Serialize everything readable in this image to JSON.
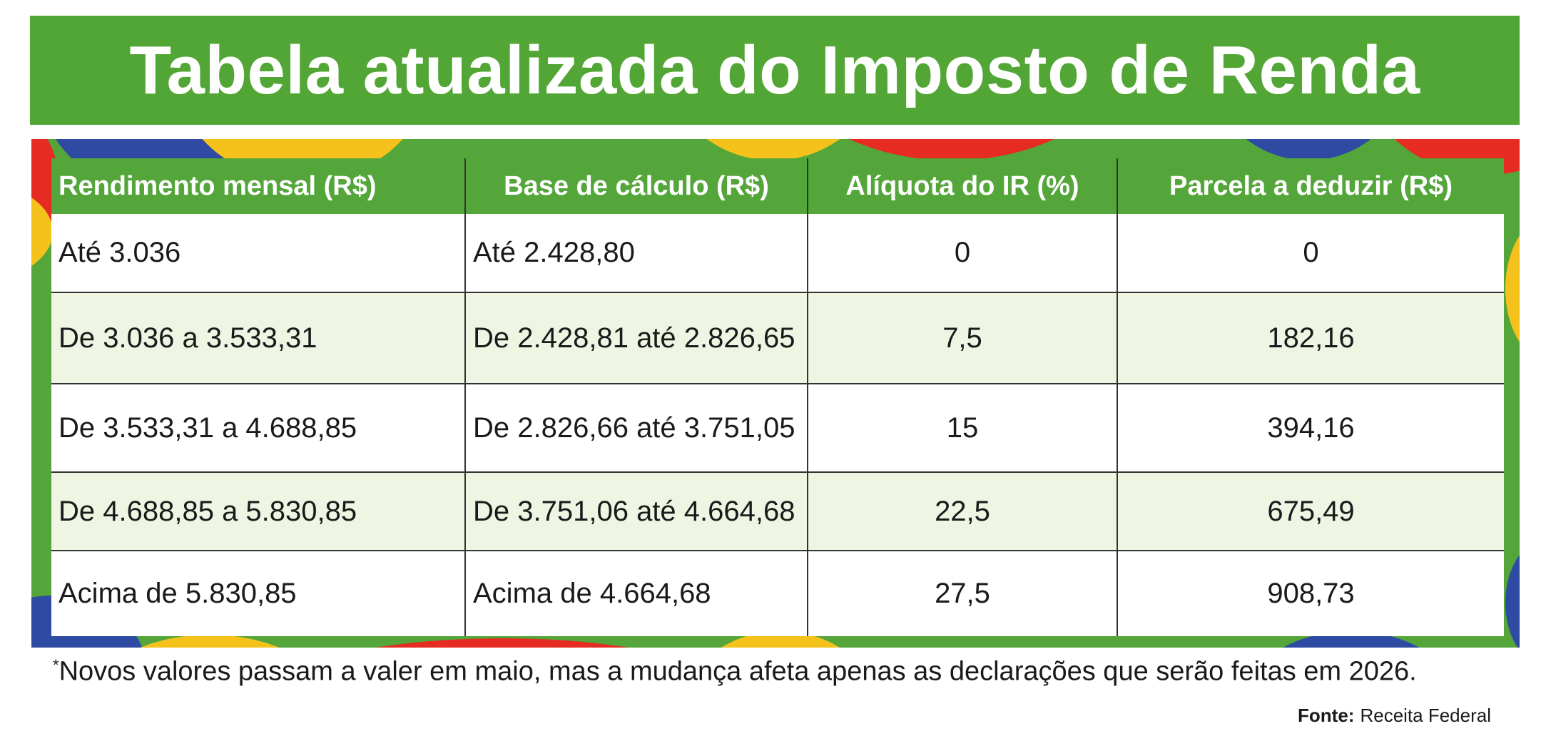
{
  "title": "Tabela atualizada do Imposto de Renda",
  "colors": {
    "brand_green": "#52a635",
    "accent_yellow": "#f5c21b",
    "accent_red": "#e52b22",
    "accent_blue": "#2e4aa3",
    "row_tint": "#eef5e3"
  },
  "table": {
    "headers": [
      "Rendimento mensal (R$)",
      "Base de cálculo (R$)",
      "Alíquota do IR (%)",
      "Parcela a deduzir (R$)"
    ],
    "rows": [
      [
        "Até 3.036",
        "Até 2.428,80",
        "0",
        "0"
      ],
      [
        "De 3.036 a 3.533,31",
        "De 2.428,81 até 2.826,65",
        "7,5",
        "182,16"
      ],
      [
        "De 3.533,31 a 4.688,85",
        "De 2.826,66 até 3.751,05",
        "15",
        "394,16"
      ],
      [
        "De 4.688,85 a 5.830,85",
        "De 3.751,06 até 4.664,68",
        "22,5",
        "675,49"
      ],
      [
        "Acima de 5.830,85",
        "Acima de 4.664,68",
        "27,5",
        "908,73"
      ]
    ]
  },
  "footnote": {
    "marker": "*",
    "text": "Novos valores passam a valer em maio, mas a mudança afeta apenas as declarações que serão feitas em 2026."
  },
  "source": {
    "label": "Fonte:",
    "value": "Receita Federal"
  }
}
